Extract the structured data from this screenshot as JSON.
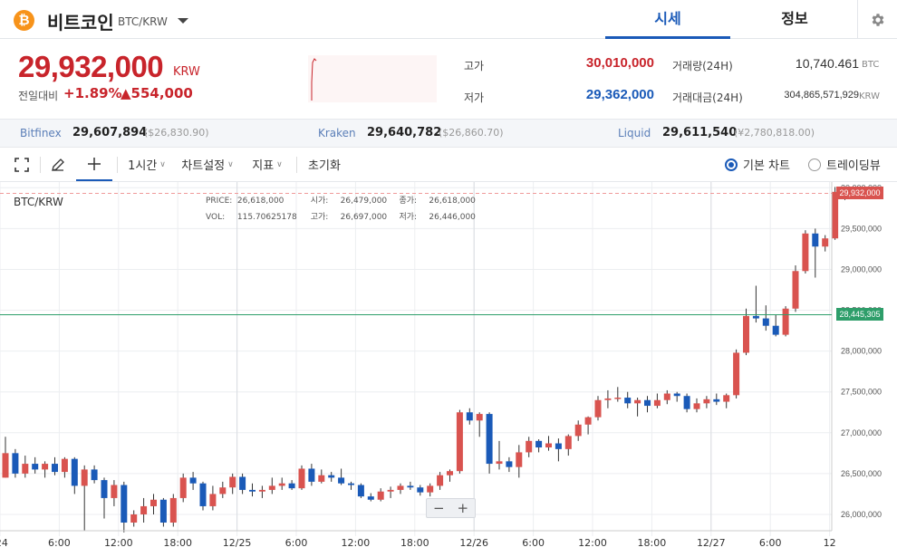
{
  "header": {
    "logo_glyph": "₿",
    "coin_name": "비트코인",
    "pair": "BTC/KRW",
    "tabs": [
      {
        "label": "시세"
      },
      {
        "label": "정보"
      }
    ]
  },
  "summary": {
    "price": "29,932,000",
    "unit": "KRW",
    "change_label": "전일대비",
    "change_pct": "+1.89%",
    "change_amt": "▲554,000",
    "high_label": "고가",
    "high_value": "30,010,000",
    "low_label": "저가",
    "low_value": "29,362,000",
    "volume_label": "거래량(24H)",
    "volume_value": "10,740.461",
    "volume_unit": "BTC",
    "amount_label": "거래대금(24H)",
    "amount_value": "304,865,571,929",
    "amount_unit": "KRW"
  },
  "exchanges": [
    {
      "name": "Bitfinex",
      "price": "29,607,894",
      "usd": "($26,830.90)"
    },
    {
      "name": "Kraken",
      "price": "29,640,782",
      "usd": "($26,860.70)"
    },
    {
      "name": "Liquid",
      "price": "29,611,540",
      "usd": "(¥2,780,818.00)"
    }
  ],
  "toolbar": {
    "interval": "1시간",
    "chart_settings": "차트설정",
    "indicators": "지표",
    "reset": "초기화",
    "basic_chart": "기본 차트",
    "tradingview": "트레이딩뷰"
  },
  "chart_info": {
    "pair": "BTC/KRW",
    "price_label": "PRICE:",
    "price": "26,618,000",
    "open_label": "시가:",
    "open": "26,479,000",
    "close_label": "종가:",
    "close": "26,618,000",
    "vol_label": "VOL:",
    "vol": "115.70625178",
    "high_label": "고가:",
    "high": "26,697,000",
    "low_label": "저가:",
    "low": "26,446,000",
    "zoom_out": "−",
    "zoom_in": "+"
  },
  "colors": {
    "up": "#d9534f",
    "down": "#1a5ab8",
    "accent": "#1a5ab8",
    "brand": "#f7931a",
    "current_line": "#f09a9a",
    "ref_line": "#2e9e6a"
  },
  "chart_data": {
    "type": "candlestick",
    "y_ticks": [
      "26,000,000",
      "26,500,000",
      "27,000,000",
      "27,500,000",
      "28,000,000",
      "28,500,000",
      "29,000,000",
      "29,500,000",
      "30,000,000"
    ],
    "ylim": [
      25800000,
      30070000
    ],
    "x_labels": [
      "/24",
      "6:00",
      "12:00",
      "18:00",
      "12/25",
      "6:00",
      "12:00",
      "18:00",
      "12/26",
      "6:00",
      "12:00",
      "18:00",
      "12/27",
      "6:00",
      "12"
    ],
    "x_label_idx": [
      0,
      6,
      12,
      18,
      24,
      30,
      36,
      42,
      48,
      54,
      60,
      66,
      72,
      78,
      84
    ],
    "current_price": 29932000,
    "current_label": "29,932,000",
    "ref_price": 28445305,
    "ref_label": "28,445,305",
    "candles": [
      [
        26450000,
        26950000,
        26450000,
        26750000
      ],
      [
        26750000,
        26800000,
        26450000,
        26500000
      ],
      [
        26500000,
        26720000,
        26450000,
        26620000
      ],
      [
        26620000,
        26700000,
        26500000,
        26550000
      ],
      [
        26550000,
        26650000,
        26450000,
        26620000
      ],
      [
        26620000,
        26700000,
        26480000,
        26520000
      ],
      [
        26520000,
        26700000,
        26450000,
        26680000
      ],
      [
        26680000,
        26700000,
        26250000,
        26350000
      ],
      [
        26350000,
        26600000,
        25800000,
        26550000
      ],
      [
        26550000,
        26600000,
        26380000,
        26420000
      ],
      [
        26420000,
        26450000,
        25950000,
        26200000
      ],
      [
        26200000,
        26420000,
        26100000,
        26360000
      ],
      [
        26360000,
        26400000,
        25780000,
        25900000
      ],
      [
        25900000,
        26050000,
        25850000,
        26000000
      ],
      [
        26000000,
        26200000,
        25900000,
        26100000
      ],
      [
        26100000,
        26250000,
        26000000,
        26180000
      ],
      [
        26180000,
        26200000,
        25850000,
        25900000
      ],
      [
        25900000,
        26250000,
        25850000,
        26200000
      ],
      [
        26200000,
        26500000,
        26150000,
        26450000
      ],
      [
        26450000,
        26520000,
        26300000,
        26380000
      ],
      [
        26380000,
        26400000,
        26050000,
        26100000
      ],
      [
        26100000,
        26350000,
        26050000,
        26250000
      ],
      [
        26250000,
        26400000,
        26200000,
        26330000
      ],
      [
        26330000,
        26500000,
        26250000,
        26460000
      ],
      [
        26460000,
        26500000,
        26250000,
        26300000
      ],
      [
        26300000,
        26380000,
        26220000,
        26280000
      ],
      [
        26280000,
        26350000,
        26200000,
        26300000
      ],
      [
        26300000,
        26450000,
        26250000,
        26350000
      ],
      [
        26350000,
        26450000,
        26300000,
        26380000
      ],
      [
        26380000,
        26420000,
        26300000,
        26320000
      ],
      [
        26320000,
        26600000,
        26300000,
        26560000
      ],
      [
        26560000,
        26620000,
        26350000,
        26400000
      ],
      [
        26400000,
        26550000,
        26380000,
        26480000
      ],
      [
        26480000,
        26520000,
        26400000,
        26450000
      ],
      [
        26450000,
        26560000,
        26360000,
        26380000
      ],
      [
        26380000,
        26400000,
        26300000,
        26360000
      ],
      [
        26360000,
        26380000,
        26200000,
        26220000
      ],
      [
        26220000,
        26260000,
        26160000,
        26180000
      ],
      [
        26180000,
        26320000,
        26160000,
        26280000
      ],
      [
        26280000,
        26340000,
        26200000,
        26300000
      ],
      [
        26300000,
        26380000,
        26250000,
        26350000
      ],
      [
        26350000,
        26400000,
        26300000,
        26330000
      ],
      [
        26330000,
        26360000,
        26230000,
        26270000
      ],
      [
        26270000,
        26380000,
        26220000,
        26350000
      ],
      [
        26350000,
        26520000,
        26300000,
        26480000
      ],
      [
        26480000,
        26550000,
        26400000,
        26530000
      ],
      [
        26530000,
        27280000,
        26500000,
        27250000
      ],
      [
        27250000,
        27300000,
        27100000,
        27150000
      ],
      [
        27150000,
        27250000,
        26950000,
        27230000
      ],
      [
        27230000,
        27250000,
        26500000,
        26620000
      ],
      [
        26620000,
        26900000,
        26550000,
        26650000
      ],
      [
        26650000,
        26700000,
        26520000,
        26580000
      ],
      [
        26580000,
        26850000,
        26450000,
        26760000
      ],
      [
        26760000,
        26950000,
        26700000,
        26900000
      ],
      [
        26900000,
        26920000,
        26760000,
        26820000
      ],
      [
        26820000,
        26960000,
        26780000,
        26870000
      ],
      [
        26870000,
        26930000,
        26650000,
        26800000
      ],
      [
        26800000,
        26980000,
        26720000,
        26960000
      ],
      [
        26960000,
        27150000,
        26900000,
        27100000
      ],
      [
        27100000,
        27200000,
        26980000,
        27190000
      ],
      [
        27190000,
        27450000,
        27150000,
        27400000
      ],
      [
        27400000,
        27520000,
        27300000,
        27420000
      ],
      [
        27420000,
        27560000,
        27380000,
        27430000
      ],
      [
        27430000,
        27500000,
        27300000,
        27360000
      ],
      [
        27360000,
        27430000,
        27200000,
        27400000
      ],
      [
        27400000,
        27450000,
        27250000,
        27330000
      ],
      [
        27330000,
        27480000,
        27300000,
        27400000
      ],
      [
        27400000,
        27520000,
        27350000,
        27480000
      ],
      [
        27480000,
        27500000,
        27380000,
        27450000
      ],
      [
        27450000,
        27480000,
        27250000,
        27290000
      ],
      [
        27290000,
        27420000,
        27250000,
        27360000
      ],
      [
        27360000,
        27450000,
        27300000,
        27410000
      ],
      [
        27410000,
        27480000,
        27340000,
        27380000
      ],
      [
        27380000,
        27480000,
        27300000,
        27460000
      ],
      [
        27460000,
        28020000,
        27420000,
        27980000
      ],
      [
        27980000,
        28520000,
        27950000,
        28430000
      ],
      [
        28430000,
        28800000,
        28350000,
        28400000
      ],
      [
        28400000,
        28560000,
        28250000,
        28310000
      ],
      [
        28310000,
        28450000,
        28180000,
        28200000
      ],
      [
        28200000,
        28550000,
        28180000,
        28520000
      ],
      [
        28520000,
        29050000,
        28480000,
        28980000
      ],
      [
        28980000,
        29480000,
        28950000,
        29440000
      ],
      [
        29440000,
        29500000,
        28900000,
        29280000
      ],
      [
        29280000,
        29420000,
        29220000,
        29380000
      ],
      [
        29380000,
        30010000,
        29362000,
        29950000
      ],
      [
        29950000,
        30010000,
        29850000,
        29932000
      ]
    ]
  }
}
